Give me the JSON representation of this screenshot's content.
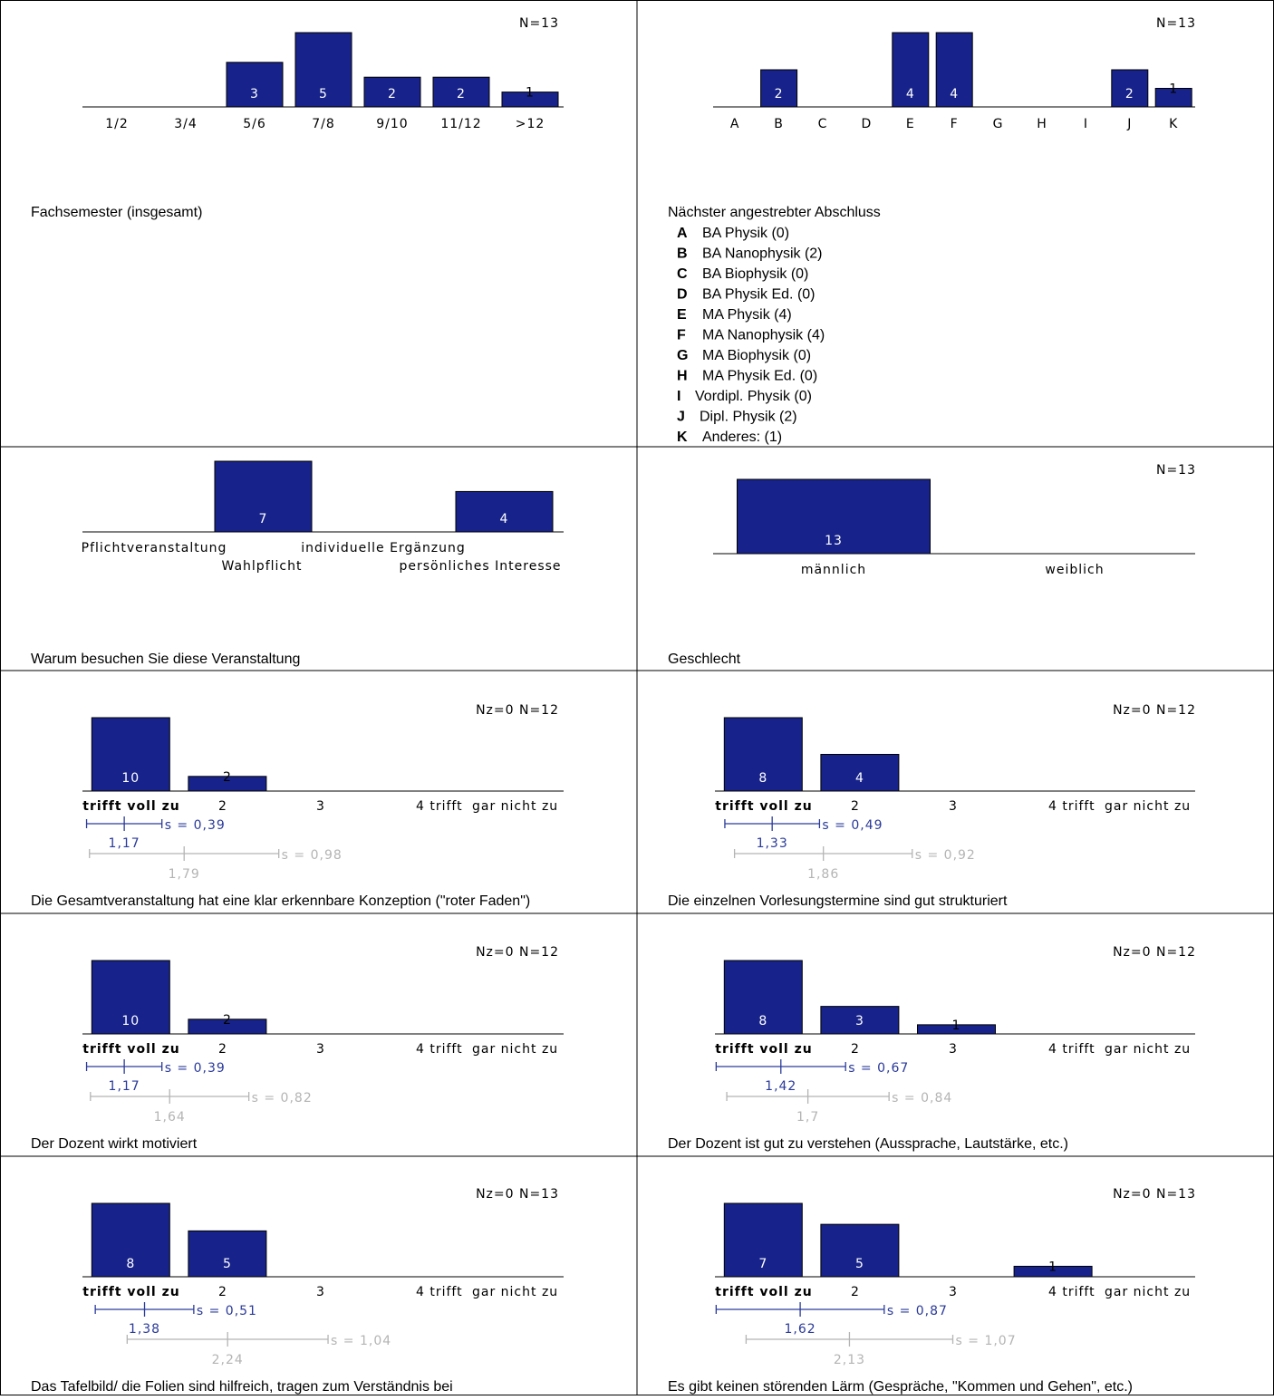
{
  "colors": {
    "bar": "#17238a",
    "bar_stroke": "#000000",
    "mean_own": "#2a3a9a",
    "mean_ref": "#b4b4b4"
  },
  "chart_data": [
    {
      "id": "fachsemester",
      "type": "bar",
      "title": "Fachsemester (insgesamt)",
      "n_label": "N=13",
      "categories": [
        "1/2",
        "3/4",
        "5/6",
        "7/8",
        "9/10",
        "11/12",
        ">12"
      ],
      "values": [
        0,
        0,
        3,
        5,
        2,
        2,
        1
      ],
      "ylim": [
        0,
        5
      ]
    },
    {
      "id": "abschluss",
      "type": "bar",
      "title": "Nächster angestrebter Abschluss",
      "n_label": "N=13",
      "categories": [
        "A",
        "B",
        "C",
        "D",
        "E",
        "F",
        "G",
        "H",
        "I",
        "J",
        "K"
      ],
      "values": [
        0,
        2,
        0,
        0,
        4,
        4,
        0,
        0,
        0,
        2,
        1
      ],
      "ylim": [
        0,
        4
      ],
      "legend": [
        {
          "key": "A",
          "text": "BA Physik (0)"
        },
        {
          "key": "B",
          "text": "BA Nanophysik (2)"
        },
        {
          "key": "C",
          "text": "BA Biophysik (0)"
        },
        {
          "key": "D",
          "text": "BA Physik Ed. (0)"
        },
        {
          "key": "E",
          "text": "MA Physik (4)"
        },
        {
          "key": "F",
          "text": "MA Nanophysik (4)"
        },
        {
          "key": "G",
          "text": "MA Biophysik (0)"
        },
        {
          "key": "H",
          "text": "MA Physik Ed. (0)"
        },
        {
          "key": "I",
          "text": "Vordipl. Physik (0)"
        },
        {
          "key": "J",
          "text": "Dipl. Physik (2)"
        },
        {
          "key": "K",
          "text": "Anderes: (1)"
        }
      ]
    },
    {
      "id": "warum",
      "type": "bar",
      "title": "Warum besuchen Sie diese Veranstaltung",
      "n_label": "",
      "categories": [
        "Pflichtveranstaltung",
        "Wahlpflicht",
        "individuelle Ergänzung",
        "persönliches Interesse"
      ],
      "values": [
        0,
        7,
        0,
        4
      ],
      "ylim": [
        0,
        7
      ]
    },
    {
      "id": "geschlecht",
      "type": "bar",
      "title": "Geschlecht",
      "n_label": "N=13",
      "categories": [
        "männlich",
        "weiblich"
      ],
      "values": [
        13,
        0
      ],
      "ylim": [
        0,
        13
      ]
    },
    {
      "id": "konzeption",
      "type": "bar",
      "title": "Die Gesamtveranstaltung hat eine klar erkennbare Konzeption (\"roter Faden\")",
      "n_label": "Nz=0   N=12",
      "categories": [
        "trifft voll zu",
        "2",
        "3",
        "4  trifft",
        "gar nicht zu"
      ],
      "values": [
        10,
        2,
        0,
        0,
        0
      ],
      "ylim": [
        0,
        10
      ],
      "mean": {
        "value": 1.17,
        "label": "1,17",
        "sd": 0.39,
        "sd_label": "s = 0,39"
      },
      "ref_mean": {
        "value": 1.79,
        "label": "1,79",
        "sd": 0.98,
        "sd_label": "s = 0,98"
      }
    },
    {
      "id": "vorlesungstermine",
      "type": "bar",
      "title": "Die einzelnen Vorlesungstermine sind gut strukturiert",
      "n_label": "Nz=0   N=12",
      "categories": [
        "trifft voll zu",
        "2",
        "3",
        "4  trifft",
        "gar nicht zu"
      ],
      "values": [
        8,
        4,
        0,
        0,
        0
      ],
      "ylim": [
        0,
        8
      ],
      "mean": {
        "value": 1.33,
        "label": "1,33",
        "sd": 0.49,
        "sd_label": "s = 0,49"
      },
      "ref_mean": {
        "value": 1.86,
        "label": "1,86",
        "sd": 0.92,
        "sd_label": "s = 0,92"
      }
    },
    {
      "id": "motiviert",
      "type": "bar",
      "title": "Der Dozent wirkt motiviert",
      "n_label": "Nz=0   N=12",
      "categories": [
        "trifft voll zu",
        "2",
        "3",
        "4  trifft",
        "gar nicht zu"
      ],
      "values": [
        10,
        2,
        0,
        0,
        0
      ],
      "ylim": [
        0,
        10
      ],
      "mean": {
        "value": 1.17,
        "label": "1,17",
        "sd": 0.39,
        "sd_label": "s = 0,39"
      },
      "ref_mean": {
        "value": 1.64,
        "label": "1,64",
        "sd": 0.82,
        "sd_label": "s = 0,82"
      }
    },
    {
      "id": "verstehen",
      "type": "bar",
      "title": "Der Dozent ist gut zu verstehen (Aussprache, Lautstärke, etc.)",
      "n_label": "Nz=0   N=12",
      "categories": [
        "trifft voll zu",
        "2",
        "3",
        "4  trifft",
        "gar nicht zu"
      ],
      "values": [
        8,
        3,
        1,
        0,
        0
      ],
      "ylim": [
        0,
        8
      ],
      "mean": {
        "value": 1.42,
        "label": "1,42",
        "sd": 0.67,
        "sd_label": "s = 0,67"
      },
      "ref_mean": {
        "value": 1.7,
        "label": "1,7",
        "sd": 0.84,
        "sd_label": "s = 0,84"
      }
    },
    {
      "id": "tafelbild",
      "type": "bar",
      "title": "Das Tafelbild/ die Folien sind hilfreich, tragen zum Verständnis bei",
      "n_label": "Nz=0   N=13",
      "categories": [
        "trifft voll zu",
        "2",
        "3",
        "4  trifft",
        "gar nicht zu"
      ],
      "values": [
        8,
        5,
        0,
        0,
        0
      ],
      "ylim": [
        0,
        8
      ],
      "mean": {
        "value": 1.38,
        "label": "1,38",
        "sd": 0.51,
        "sd_label": "s = 0,51"
      },
      "ref_mean": {
        "value": 2.24,
        "label": "2,24",
        "sd": 1.04,
        "sd_label": "s = 1,04"
      }
    },
    {
      "id": "laerm",
      "type": "bar",
      "title": "Es gibt keinen störenden Lärm (Gespräche, \"Kommen und Gehen\", etc.)",
      "n_label": "Nz=0   N=13",
      "categories": [
        "trifft voll zu",
        "2",
        "3",
        "4  trifft",
        "gar nicht zu"
      ],
      "values": [
        7,
        5,
        0,
        1,
        0
      ],
      "ylim": [
        0,
        7
      ],
      "mean": {
        "value": 1.62,
        "label": "1,62",
        "sd": 0.87,
        "sd_label": "s = 0,87"
      },
      "ref_mean": {
        "value": 2.13,
        "label": "2,13",
        "sd": 1.07,
        "sd_label": "s = 1,07"
      }
    }
  ]
}
